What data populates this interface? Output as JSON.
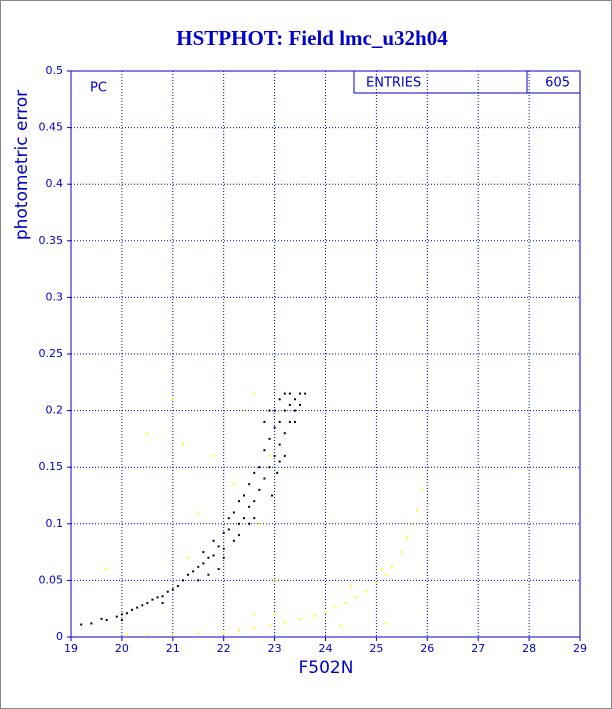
{
  "chart_data": {
    "type": "scatter",
    "title": "HSTPHOT: Field lmc_u32h04",
    "x_label": "F502N",
    "y_label": "photometric error",
    "annotation": "PC",
    "stats": {
      "label": "ENTRIES",
      "value": 605
    },
    "xlim": [
      19,
      29
    ],
    "xticks": [
      19,
      20,
      21,
      22,
      23,
      24,
      25,
      26,
      27,
      28,
      29
    ],
    "ylim": [
      0,
      0.5
    ],
    "yticks": [
      0,
      0.05,
      0.1,
      0.15,
      0.2,
      0.25,
      0.3,
      0.35,
      0.4,
      0.45,
      0.5
    ],
    "grid": true,
    "series": [
      {
        "color": "#000000",
        "x": [
          19.2,
          19.4,
          19.6,
          19.7,
          19.9,
          20.0,
          20.1,
          20.2,
          20.3,
          20.4,
          20.5,
          20.6,
          20.7,
          20.8,
          20.9,
          21.0,
          21.1,
          21.2,
          21.3,
          21.4,
          21.5,
          21.6,
          21.6,
          21.7,
          21.8,
          21.8,
          21.9,
          22.0,
          22.0,
          22.1,
          22.1,
          22.2,
          22.2,
          22.3,
          22.3,
          22.4,
          22.4,
          22.5,
          22.5,
          22.6,
          22.6,
          22.7,
          22.7,
          22.8,
          22.8,
          22.9,
          22.9,
          23.0,
          23.0,
          23.0,
          23.1,
          23.1,
          23.1,
          23.2,
          23.2,
          23.2,
          23.3,
          23.3,
          23.3,
          23.4,
          23.4,
          23.5,
          23.5,
          23.6,
          22.9,
          22.8,
          23.05,
          22.95,
          22.6,
          22.3,
          22.0,
          21.9,
          21.7,
          21.5,
          20.8,
          20.0,
          22.5,
          23.2,
          23.4,
          23.1
        ],
        "values": [
          0.011,
          0.012,
          0.016,
          0.015,
          0.018,
          0.02,
          0.021,
          0.024,
          0.026,
          0.028,
          0.03,
          0.033,
          0.035,
          0.036,
          0.04,
          0.042,
          0.045,
          0.05,
          0.055,
          0.058,
          0.062,
          0.065,
          0.075,
          0.07,
          0.072,
          0.085,
          0.08,
          0.078,
          0.092,
          0.095,
          0.105,
          0.085,
          0.11,
          0.1,
          0.12,
          0.105,
          0.125,
          0.115,
          0.135,
          0.12,
          0.145,
          0.13,
          0.15,
          0.14,
          0.165,
          0.15,
          0.175,
          0.16,
          0.185,
          0.2,
          0.17,
          0.19,
          0.21,
          0.18,
          0.2,
          0.215,
          0.19,
          0.205,
          0.215,
          0.2,
          0.21,
          0.215,
          0.205,
          0.215,
          0.2,
          0.19,
          0.145,
          0.125,
          0.105,
          0.09,
          0.07,
          0.06,
          0.055,
          0.05,
          0.03,
          0.015,
          0.1,
          0.16,
          0.19,
          0.155
        ]
      },
      {
        "color": "#ffff00",
        "x": [
          20.1,
          20.5,
          21.0,
          21.5,
          22.0,
          22.3,
          22.6,
          22.9,
          23.2,
          23.5,
          23.8,
          24.0,
          24.2,
          24.4,
          24.6,
          24.8,
          25.0,
          25.2,
          25.3,
          25.5,
          25.6,
          25.7,
          25.8,
          25.9,
          23.0,
          24.5,
          25.1,
          19.7,
          20.5,
          21.2,
          21.0,
          21.8,
          22.2,
          22.6,
          22.4,
          22.9,
          21.3,
          21.5,
          22.7,
          23.0,
          22.6,
          24.3,
          25.2
        ],
        "values": [
          0.002,
          0.002,
          0.002,
          0.003,
          0.004,
          0.006,
          0.008,
          0.01,
          0.013,
          0.016,
          0.019,
          0.022,
          0.026,
          0.03,
          0.035,
          0.04,
          0.048,
          0.055,
          0.062,
          0.075,
          0.088,
          0.1,
          0.112,
          0.13,
          0.02,
          0.045,
          0.06,
          0.06,
          0.18,
          0.17,
          0.21,
          0.16,
          0.135,
          0.215,
          0.2,
          0.16,
          0.07,
          0.11,
          0.1,
          0.05,
          0.02,
          0.01,
          0.012
        ]
      }
    ]
  }
}
